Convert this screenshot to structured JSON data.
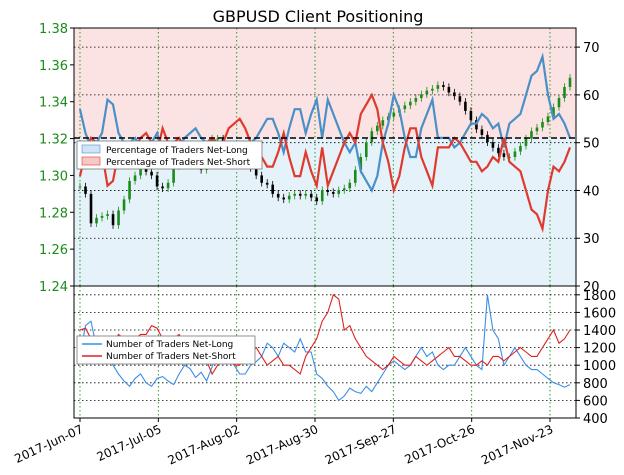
{
  "chart_data": [
    {
      "type": "line",
      "title": "GBPUSD Client Positioning",
      "x_tick_labels": [
        "2017-Jun-07",
        "2017-Jul-05",
        "2017-Aug-02",
        "2017-Aug-30",
        "2017-Sep-27",
        "2017-Oct-26",
        "2017-Nov-23"
      ],
      "price_axis": {
        "ticks": [
          "1.38",
          "1.36",
          "1.34",
          "1.32",
          "1.30",
          "1.28",
          "1.26",
          "1.24"
        ],
        "ylim": [
          1.24,
          1.38
        ]
      },
      "pct_axis": {
        "ticks": [
          "70",
          "60",
          "50",
          "40",
          "30",
          "20"
        ],
        "ylim": [
          20,
          74
        ]
      },
      "reference_line": 50,
      "legend": [
        "Percentage of Traders Net-Long",
        "Percentage of Traders Net-Short"
      ],
      "colors": {
        "net_long": "#4a90c8",
        "net_short": "#e03a2e",
        "price_up": "#1a8c1a",
        "price_down": "#000000",
        "long_fill": "#e6f2fa",
        "short_fill": "#fbe3e3"
      },
      "x": [
        0,
        2,
        4,
        6,
        8,
        10,
        12,
        14,
        16,
        18,
        20,
        22,
        24,
        26,
        28,
        30,
        32,
        34,
        36,
        38,
        40,
        42,
        44,
        46,
        48,
        50,
        52,
        54,
        56,
        58,
        60,
        62,
        64,
        66,
        68,
        70,
        72,
        74,
        76,
        78,
        80,
        82,
        84,
        86,
        88,
        90,
        92,
        94,
        96,
        98,
        100,
        102,
        104,
        106,
        108,
        110,
        112,
        114,
        116,
        118,
        120,
        122,
        124,
        126,
        128,
        130,
        132,
        134,
        136,
        138,
        140,
        142,
        144,
        146,
        148,
        150,
        152,
        154,
        156,
        158,
        160,
        162,
        164,
        166,
        168,
        170,
        172,
        174,
        176,
        178
      ],
      "series": [
        {
          "name": "Percentage of Traders Net-Long",
          "values": [
            57,
            52,
            49,
            50,
            52,
            59,
            58,
            52,
            50,
            50,
            51,
            49,
            48,
            50,
            52,
            47,
            50,
            50,
            49,
            51,
            52,
            53,
            51,
            50,
            49,
            50,
            50,
            47,
            46,
            45,
            47,
            50,
            51,
            53,
            55,
            55,
            52,
            48,
            53,
            57,
            57,
            52,
            56,
            59,
            51,
            59,
            56,
            53,
            50,
            48,
            50,
            44,
            42,
            40,
            43,
            50,
            54,
            60,
            57,
            51,
            47,
            47,
            53,
            56,
            59,
            51,
            51,
            51,
            49,
            50,
            52,
            54,
            54,
            56,
            55,
            53,
            54,
            49,
            54,
            55,
            56,
            60,
            64,
            65,
            68,
            60,
            55,
            56,
            54,
            51
          ]
        },
        {
          "name": "Percentage of Traders Net-Short",
          "values": [
            43,
            48,
            51,
            50,
            48,
            41,
            42,
            48,
            50,
            50,
            49,
            51,
            52,
            50,
            48,
            53,
            50,
            50,
            51,
            49,
            48,
            47,
            49,
            50,
            51,
            50,
            50,
            53,
            54,
            55,
            53,
            50,
            49,
            47,
            45,
            45,
            48,
            52,
            47,
            43,
            43,
            48,
            44,
            41,
            49,
            41,
            44,
            47,
            50,
            52,
            50,
            56,
            58,
            60,
            57,
            50,
            46,
            40,
            43,
            49,
            53,
            53,
            47,
            44,
            41,
            49,
            49,
            49,
            51,
            50,
            48,
            46,
            46,
            44,
            45,
            47,
            46,
            51,
            46,
            45,
            44,
            40,
            36,
            35,
            32,
            40,
            45,
            44,
            46,
            49
          ]
        },
        {
          "name": "Price",
          "values": [
            1.294,
            1.29,
            1.274,
            1.277,
            1.278,
            1.279,
            1.273,
            1.281,
            1.287,
            1.297,
            1.3,
            1.305,
            1.302,
            1.3,
            1.294,
            1.293,
            1.296,
            1.305,
            1.306,
            1.31,
            1.312,
            1.307,
            1.303,
            1.316,
            1.32,
            1.32,
            1.316,
            1.312,
            1.312,
            1.309,
            1.31,
            1.304,
            1.3,
            1.296,
            1.295,
            1.29,
            1.288,
            1.287,
            1.289,
            1.29,
            1.289,
            1.29,
            1.288,
            1.286,
            1.292,
            1.291,
            1.29,
            1.292,
            1.293,
            1.296,
            1.303,
            1.31,
            1.318,
            1.324,
            1.327,
            1.33,
            1.332,
            1.334,
            1.336,
            1.338,
            1.34,
            1.342,
            1.344,
            1.346,
            1.347,
            1.349,
            1.348,
            1.345,
            1.343,
            1.34,
            1.335,
            1.33,
            1.325,
            1.322,
            1.318,
            1.315,
            1.312,
            1.31,
            1.31,
            1.313,
            1.316,
            1.32,
            1.324,
            1.326,
            1.329,
            1.332,
            1.337,
            1.342,
            1.348,
            1.353
          ]
        }
      ]
    },
    {
      "type": "line",
      "x_tick_labels": [
        "2017-Jun-07",
        "2017-Jul-05",
        "2017-Aug-02",
        "2017-Aug-30",
        "2017-Sep-27",
        "2017-Oct-26",
        "2017-Nov-23"
      ],
      "y_ticks": [
        "1800",
        "1600",
        "1400",
        "1200",
        "1000",
        "800",
        "600",
        "400"
      ],
      "ylim": [
        400,
        1900
      ],
      "legend": [
        "Number of Traders Net-Long",
        "Number of Traders Net-Short"
      ],
      "colors": {
        "net_long": "#3a8ee6",
        "net_short": "#e02020"
      },
      "x": [
        0,
        2,
        4,
        6,
        8,
        10,
        12,
        14,
        16,
        18,
        20,
        22,
        24,
        26,
        28,
        30,
        32,
        34,
        36,
        38,
        40,
        42,
        44,
        46,
        48,
        50,
        52,
        54,
        56,
        58,
        60,
        62,
        64,
        66,
        68,
        70,
        72,
        74,
        76,
        78,
        80,
        82,
        84,
        86,
        88,
        90,
        92,
        94,
        96,
        98,
        100,
        102,
        104,
        106,
        108,
        110,
        112,
        114,
        116,
        118,
        120,
        122,
        124,
        126,
        128,
        130,
        132,
        134,
        136,
        138,
        140,
        142,
        144,
        146,
        148,
        150,
        152,
        154,
        156,
        158,
        160,
        162,
        164,
        166,
        168,
        170,
        172,
        174,
        176,
        178
      ],
      "series": [
        {
          "name": "Number of Traders Net-Long",
          "values": [
            1100,
            1450,
            1500,
            1200,
            1250,
            1100,
            1000,
            900,
            820,
            760,
            850,
            900,
            800,
            760,
            850,
            870,
            820,
            780,
            900,
            1000,
            960,
            860,
            920,
            820,
            980,
            1180,
            1200,
            1100,
            1000,
            900,
            900,
            1000,
            1040,
            1100,
            1250,
            1200,
            1100,
            1250,
            1200,
            1150,
            1300,
            1150,
            1150,
            900,
            850,
            760,
            700,
            600,
            650,
            740,
            700,
            680,
            760,
            700,
            800,
            900,
            1000,
            1050,
            1000,
            950,
            1000,
            1100,
            1200,
            1100,
            1150,
            1000,
            950,
            1000,
            1000,
            1100,
            1200,
            1100,
            1000,
            950,
            1800,
            1400,
            1300,
            1000,
            1100,
            1200,
            1100,
            1000,
            950,
            950,
            900,
            850,
            800,
            780,
            750,
            780
          ]
        },
        {
          "name": "Number of Traders Net-Short",
          "values": [
            1400,
            1420,
            1300,
            1300,
            1250,
            1300,
            1250,
            1350,
            1300,
            1200,
            1300,
            1350,
            1350,
            1450,
            1420,
            1300,
            1250,
            1300,
            1350,
            1250,
            1300,
            1250,
            1100,
            1050,
            900,
            1000,
            1050,
            1100,
            1000,
            1000,
            1100,
            1150,
            1200,
            1100,
            1000,
            1050,
            1100,
            1000,
            1000,
            950,
            900,
            1100,
            1200,
            1300,
            1500,
            1600,
            1800,
            1750,
            1400,
            1450,
            1300,
            1200,
            1100,
            1050,
            1000,
            950,
            1000,
            1100,
            1050,
            1000,
            1000,
            1100,
            1050,
            1000,
            1050,
            1100,
            1150,
            1200,
            1100,
            1100,
            1050,
            1000,
            1000,
            1050,
            1000,
            1100,
            1100,
            1050,
            1100,
            1150,
            1200,
            1150,
            1100,
            1100,
            1200,
            1300,
            1400,
            1250,
            1300,
            1400
          ]
        }
      ]
    }
  ]
}
